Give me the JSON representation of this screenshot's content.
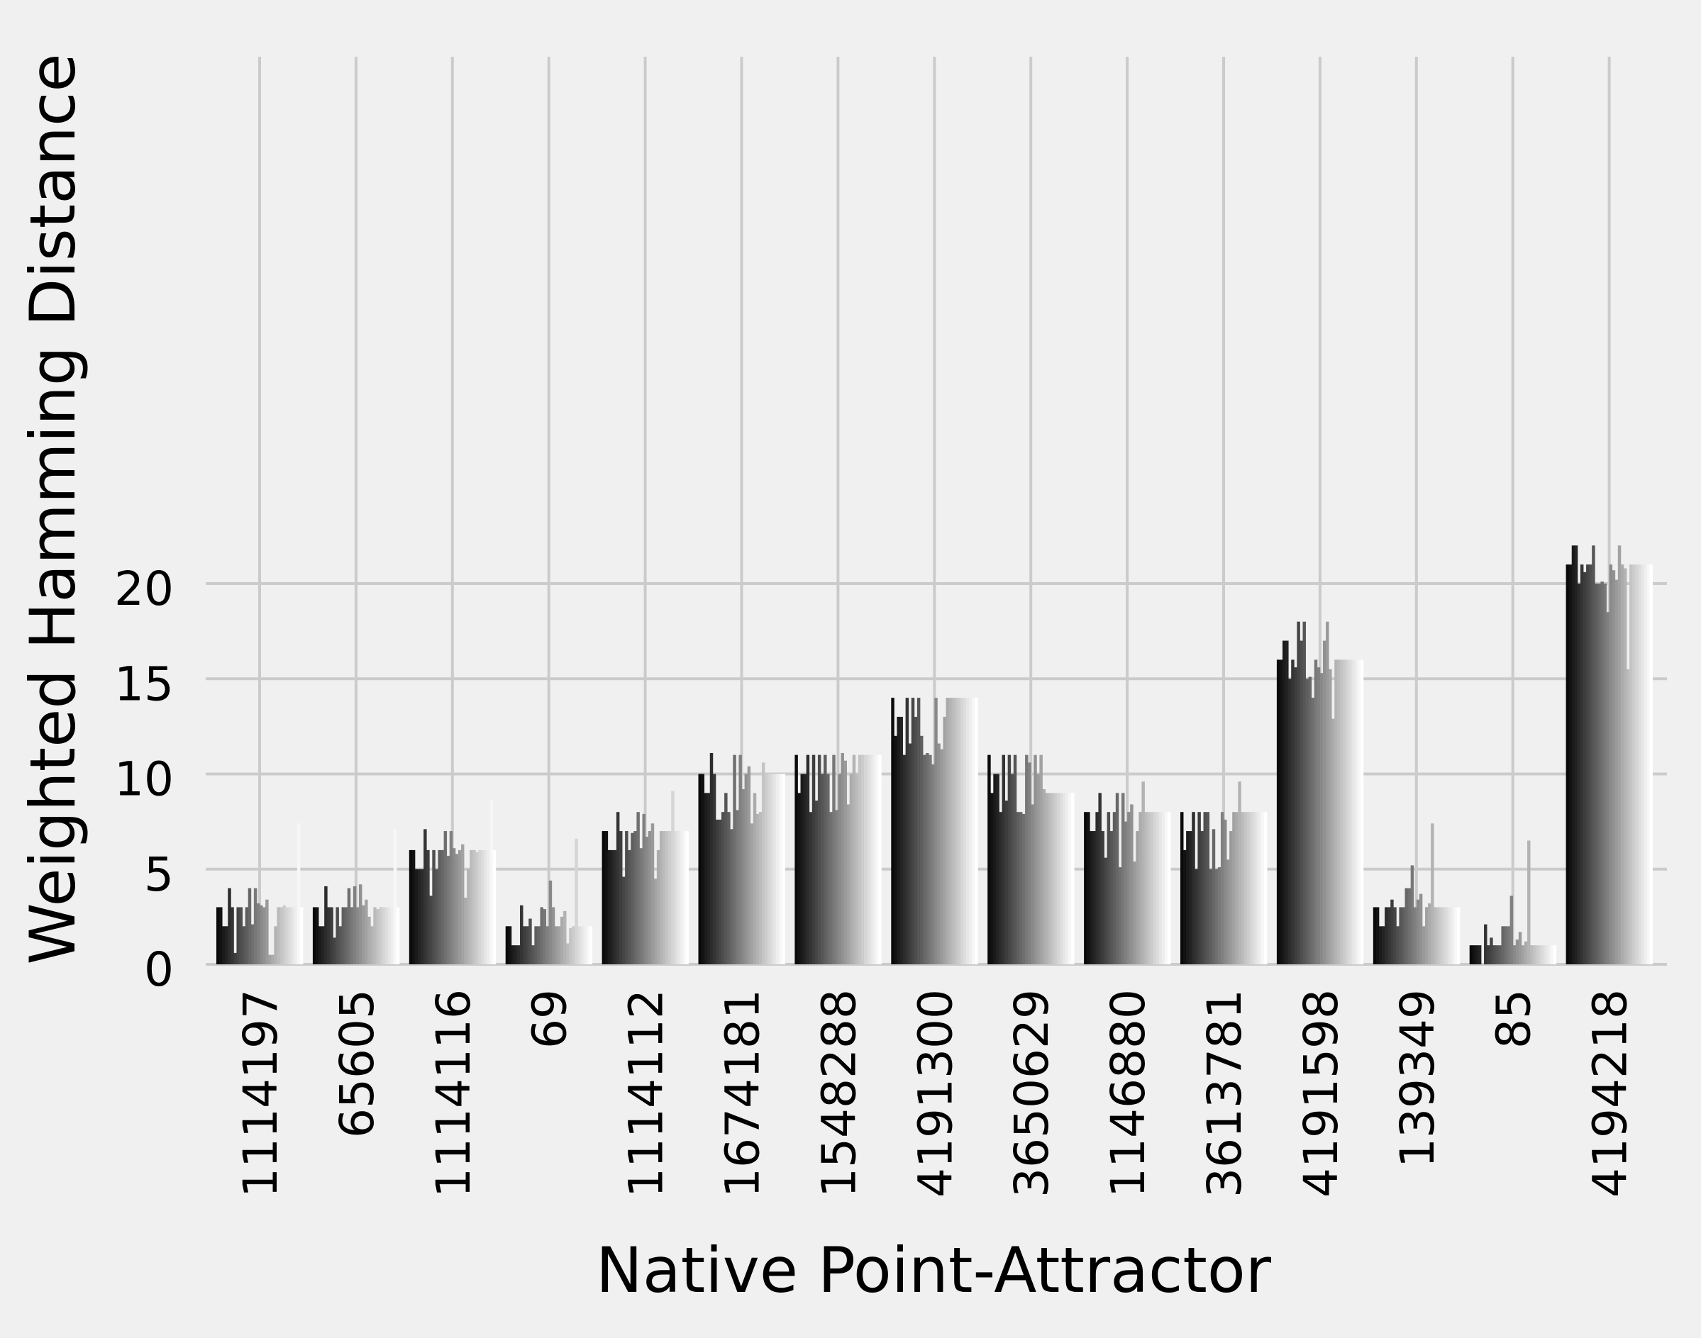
{
  "chart_data": {
    "type": "bar",
    "title": "",
    "xlabel": "Native Point-Attractor",
    "ylabel": "Weighted Hamming Distance",
    "ylim": [
      0,
      24
    ],
    "yticks": [
      0,
      5,
      10,
      15,
      20
    ],
    "grid": true,
    "legend": "none",
    "categories": [
      "1114197",
      "65605",
      "1114116",
      "69",
      "1114112",
      "1674181",
      "1548288",
      "4191300",
      "3650629",
      "1146880",
      "3613781",
      "4191598",
      "139349",
      "85",
      "4194218"
    ],
    "series_count": 30,
    "series_colors": "grayscale gradient, black to white",
    "values_by_category": [
      [
        3,
        3,
        2,
        2,
        4,
        3,
        0.6,
        3,
        3,
        2,
        3,
        4,
        2.1,
        4,
        3.2,
        3.1,
        3,
        3.4,
        0.5,
        0.5,
        2,
        3,
        3,
        3.1,
        3,
        3,
        3,
        3,
        7.4,
        3
      ],
      [
        3,
        3,
        2,
        2,
        4.1,
        3,
        3,
        1.4,
        3,
        2,
        3,
        3,
        4,
        3,
        4.1,
        3,
        4.2,
        3.1,
        3.4,
        2.5,
        2,
        3,
        2.9,
        3,
        3,
        3,
        3,
        3,
        7.1,
        3
      ],
      [
        6,
        6,
        5,
        5,
        5,
        7.1,
        6,
        3.6,
        6,
        5,
        6,
        6,
        7,
        5.7,
        7,
        6.1,
        5.8,
        6,
        6.3,
        3.5,
        5,
        6,
        6,
        5.9,
        6,
        6,
        6,
        6,
        8.6,
        6
      ],
      [
        2,
        2,
        1,
        1,
        1,
        3.1,
        2,
        2,
        2.4,
        1,
        2,
        2,
        3,
        2.9,
        2,
        4.4,
        3,
        2,
        2,
        2.5,
        2.8,
        1.1,
        1.9,
        2,
        6.6,
        2,
        2,
        2,
        2,
        2
      ],
      [
        7,
        7,
        6,
        6,
        6,
        8,
        7,
        4.6,
        7,
        6,
        6.9,
        7,
        8,
        6.1,
        7.9,
        6.7,
        7,
        7.4,
        4.5,
        6,
        7,
        7,
        7,
        7,
        9.1,
        7,
        7,
        7,
        7,
        7
      ],
      [
        10,
        10,
        9,
        9,
        11.1,
        10,
        7.6,
        7.6,
        8,
        9,
        8,
        7.1,
        11,
        8.1,
        11,
        9.2,
        10,
        10.4,
        7.4,
        9,
        7.9,
        8,
        10.6,
        10,
        10,
        10,
        10,
        10,
        10,
        10
      ],
      [
        11,
        9,
        10,
        10,
        11,
        8,
        11,
        8.6,
        11,
        10,
        11,
        10,
        8,
        11,
        8.1,
        10,
        11.1,
        10.7,
        8.4,
        10,
        11,
        10,
        11,
        11,
        11,
        11,
        11,
        11,
        11,
        11
      ],
      [
        14,
        12,
        13,
        13,
        11,
        14,
        11.6,
        14,
        13,
        14,
        12,
        11,
        11.1,
        11,
        10.5,
        14,
        11.6,
        11.3,
        13,
        14,
        14,
        14,
        14,
        14,
        14,
        14,
        14,
        14,
        14,
        14
      ],
      [
        11,
        9,
        10,
        10,
        8,
        11,
        8.6,
        11,
        10,
        11,
        8,
        8,
        7.9,
        11,
        10.6,
        8.4,
        11,
        10,
        11,
        9.2,
        9,
        9,
        9,
        9,
        9,
        9,
        9,
        9,
        9,
        9
      ],
      [
        8,
        8,
        7,
        7,
        8,
        9,
        7,
        5.6,
        8,
        7,
        8,
        9,
        5.1,
        9,
        7.5,
        8,
        8.4,
        5.4,
        7,
        8,
        9.6,
        8,
        8,
        8,
        8,
        8,
        8,
        8,
        8,
        8
      ],
      [
        8,
        6,
        7,
        7,
        8,
        5,
        8,
        7,
        8,
        8,
        5,
        7.1,
        5,
        5.1,
        8,
        7.6,
        5.5,
        7,
        8,
        8,
        9.6,
        8,
        8,
        8,
        8,
        8,
        8,
        8,
        8,
        8
      ],
      [
        16,
        16,
        17,
        17,
        15,
        16,
        15.6,
        18,
        17,
        18,
        15,
        15.1,
        14,
        16,
        15.6,
        15.3,
        17,
        18,
        15.5,
        12.9,
        16,
        16,
        16,
        16,
        16,
        16,
        16,
        16,
        16,
        16
      ],
      [
        3,
        3,
        2,
        2,
        3,
        3,
        3.4,
        3,
        2,
        3,
        3,
        4,
        4,
        5.2,
        3,
        3.4,
        3.7,
        2,
        3,
        3.2,
        7.4,
        3,
        3,
        3,
        3,
        3,
        3,
        3,
        3,
        3
      ],
      [
        1,
        1,
        1,
        1,
        0,
        2.1,
        1,
        1.4,
        1,
        1,
        1,
        2,
        2,
        2,
        3.6,
        1,
        1.3,
        1.7,
        1,
        1.2,
        6.5,
        1,
        1,
        1,
        1,
        1,
        1,
        1,
        1,
        1
      ],
      [
        21,
        21,
        22,
        22,
        20,
        21,
        20.6,
        21,
        21,
        22,
        20,
        20,
        20.1,
        20,
        18.5,
        21,
        20.7,
        20.2,
        22,
        21,
        20.8,
        15.5,
        21,
        21,
        21,
        21,
        21,
        21,
        21,
        21
      ]
    ]
  }
}
